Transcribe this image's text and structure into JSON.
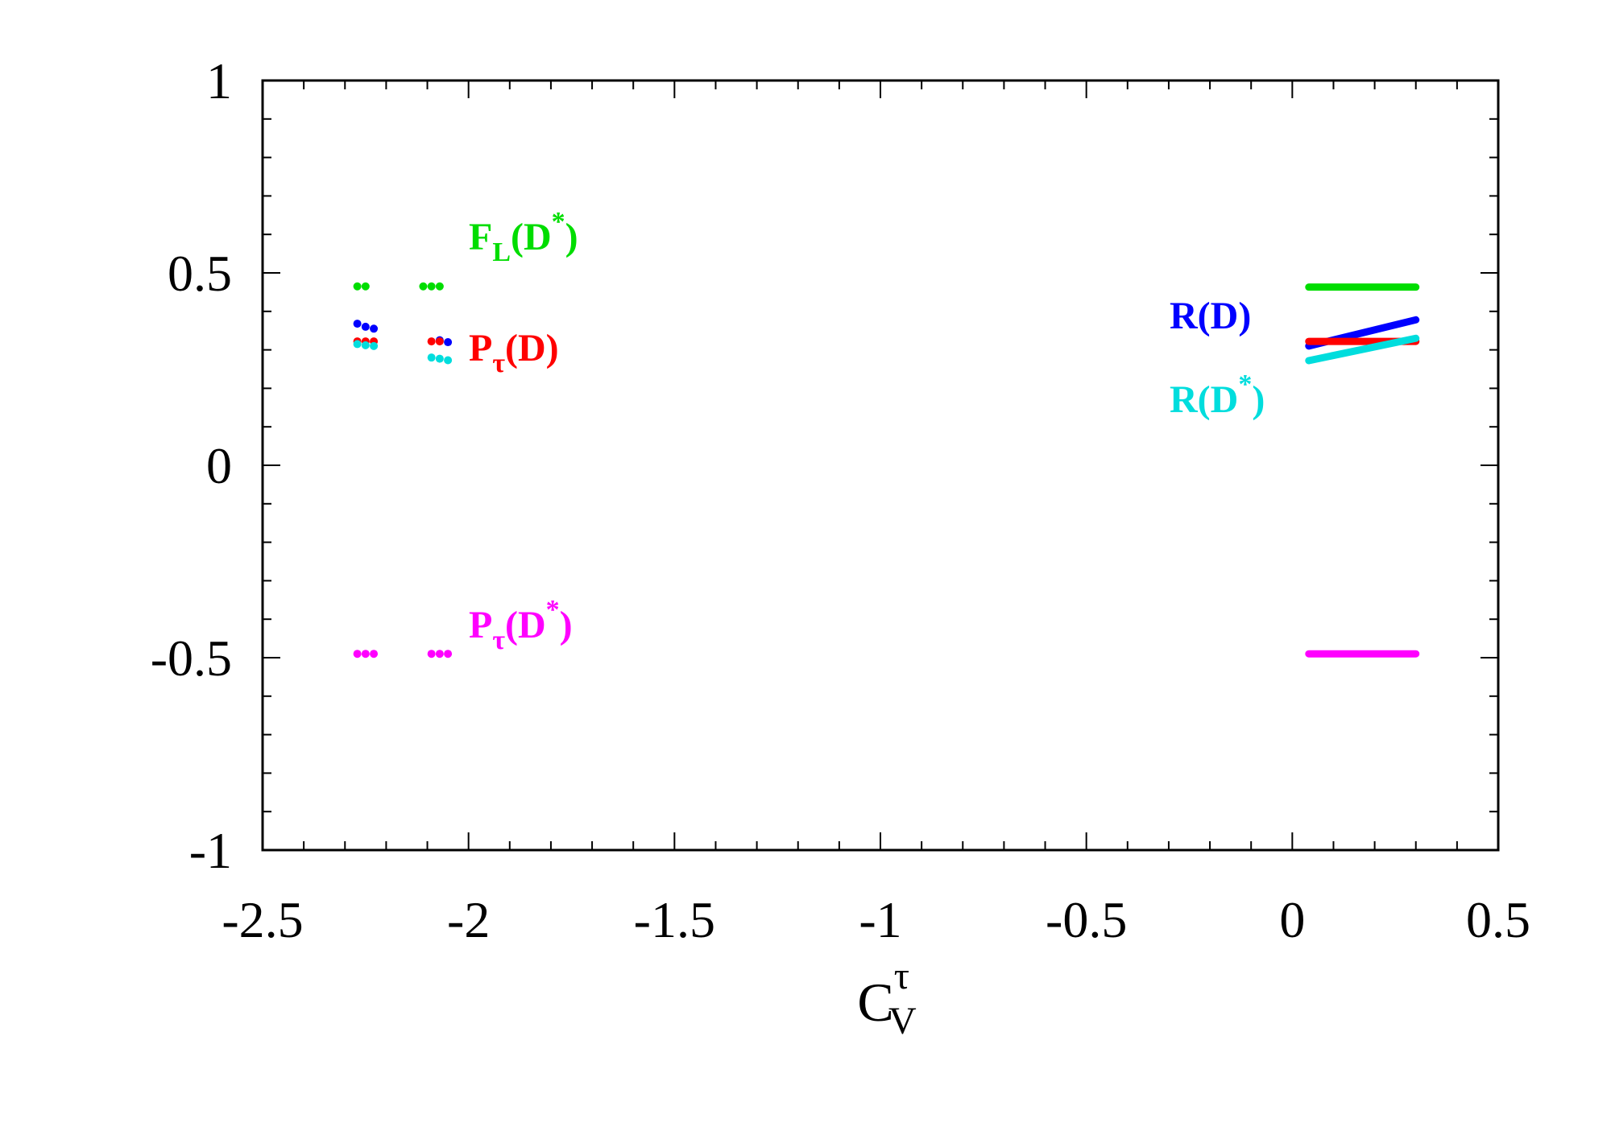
{
  "chart_data": {
    "type": "scatter",
    "xlim": [
      -2.5,
      0.5
    ],
    "ylim": [
      -1,
      1
    ],
    "x_ticks": [
      "-2.5",
      "-2",
      "-1.5",
      "-1",
      "-0.5",
      "0",
      "0.5"
    ],
    "x_tick_values": [
      -2.5,
      -2,
      -1.5,
      -1,
      -0.5,
      0,
      0.5
    ],
    "y_ticks": [
      "1",
      "0.5",
      "0",
      "-0.5",
      "-1"
    ],
    "y_tick_values": [
      1,
      0.5,
      0,
      -0.5,
      -1
    ],
    "x_minor_step": 0.1,
    "y_minor_step": 0.1,
    "xlabel": {
      "main": "C",
      "sup": "τ",
      "sub": "V"
    },
    "ylabel": "",
    "grid": false,
    "series": [
      {
        "name": "F_L(D*)",
        "label": {
          "base": "F",
          "sub": "L",
          "mid": "(D",
          "sup": "*",
          "end": ")"
        },
        "color": "#00dd00",
        "points": [
          [
            -2.27,
            0.465
          ],
          [
            -2.25,
            0.465
          ],
          [
            -2.11,
            0.465
          ],
          [
            -2.09,
            0.465
          ],
          [
            -2.07,
            0.465
          ]
        ],
        "line": [
          [
            0.04,
            0.463
          ],
          [
            0.3,
            0.463
          ]
        ]
      },
      {
        "name": "R(D)",
        "label": {
          "base": "R(D)",
          "sub": "",
          "mid": "",
          "sup": "",
          "end": ""
        },
        "color": "#0000ff",
        "points": [
          [
            -2.27,
            0.368
          ],
          [
            -2.25,
            0.36
          ],
          [
            -2.23,
            0.355
          ],
          [
            -2.07,
            0.325
          ],
          [
            -2.05,
            0.32
          ]
        ],
        "line": [
          [
            0.04,
            0.31
          ],
          [
            0.3,
            0.378
          ]
        ]
      },
      {
        "name": "P_τ(D)",
        "label": {
          "base": "P",
          "sub": "τ",
          "mid": "(D)",
          "sup": "",
          "end": ""
        },
        "color": "#ff0000",
        "points": [
          [
            -2.27,
            0.322
          ],
          [
            -2.25,
            0.322
          ],
          [
            -2.23,
            0.322
          ],
          [
            -2.09,
            0.322
          ],
          [
            -2.07,
            0.322
          ]
        ],
        "line": [
          [
            0.04,
            0.322
          ],
          [
            0.3,
            0.322
          ]
        ]
      },
      {
        "name": "R(D*)",
        "label": {
          "base": "R(D",
          "sub": "",
          "mid": "",
          "sup": "*",
          "end": ")"
        },
        "color": "#00dddd",
        "points": [
          [
            -2.27,
            0.315
          ],
          [
            -2.25,
            0.312
          ],
          [
            -2.23,
            0.31
          ],
          [
            -2.09,
            0.28
          ],
          [
            -2.07,
            0.277
          ],
          [
            -2.05,
            0.273
          ]
        ],
        "line": [
          [
            0.04,
            0.272
          ],
          [
            0.3,
            0.33
          ]
        ]
      },
      {
        "name": "P_τ(D*)",
        "label": {
          "base": "P",
          "sub": "τ",
          "mid": "(D",
          "sup": "*",
          "end": ")"
        },
        "color": "#ff00ff",
        "points": [
          [
            -2.27,
            -0.49
          ],
          [
            -2.25,
            -0.49
          ],
          [
            -2.23,
            -0.49
          ],
          [
            -2.09,
            -0.49
          ],
          [
            -2.07,
            -0.49
          ],
          [
            -2.05,
            -0.49
          ]
        ],
        "line": [
          [
            0.04,
            -0.49
          ],
          [
            0.3,
            -0.49
          ]
        ]
      }
    ]
  }
}
